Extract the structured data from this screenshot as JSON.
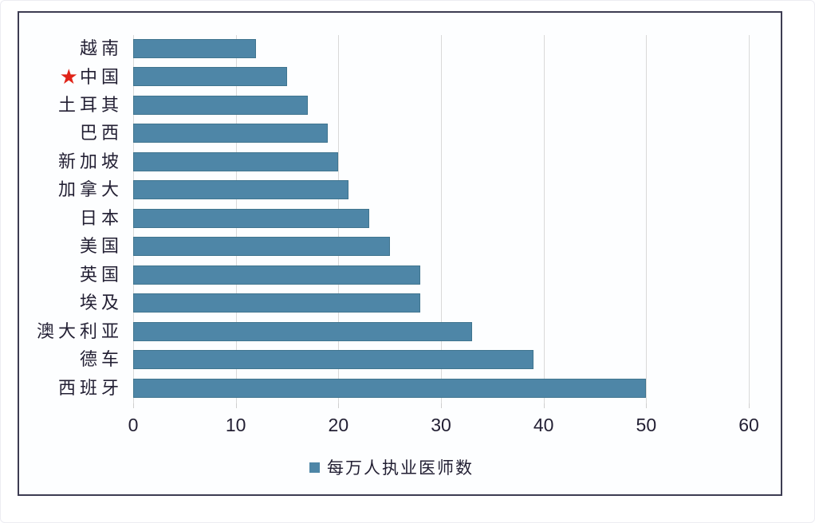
{
  "chart_data": {
    "type": "bar",
    "orientation": "horizontal",
    "categories": [
      "越南",
      "中国",
      "土耳其",
      "巴西",
      "新加坡",
      "加拿大",
      "日本",
      "美国",
      "英国",
      "埃及",
      "澳大利亚",
      "德车",
      "西班牙"
    ],
    "values": [
      12,
      15,
      17,
      19,
      20,
      21,
      23,
      25,
      28,
      28,
      33,
      39,
      50
    ],
    "series_name": "每万人执业医师数",
    "xlim": [
      0,
      60
    ],
    "x_ticks": [
      0,
      10,
      20,
      30,
      40,
      50,
      60
    ],
    "grid": true,
    "legend_position": "bottom",
    "highlight": {
      "category": "中国",
      "marker": "star",
      "marker_glyph": "★",
      "color": "#e02318"
    },
    "colors": {
      "bar": "#4e86a7",
      "bar_border": "#40758f",
      "grid": "#d9d9d9",
      "frame": "#3d3c52",
      "text": "#221f33"
    }
  },
  "legend": {
    "label": "每万人执业医师数"
  }
}
